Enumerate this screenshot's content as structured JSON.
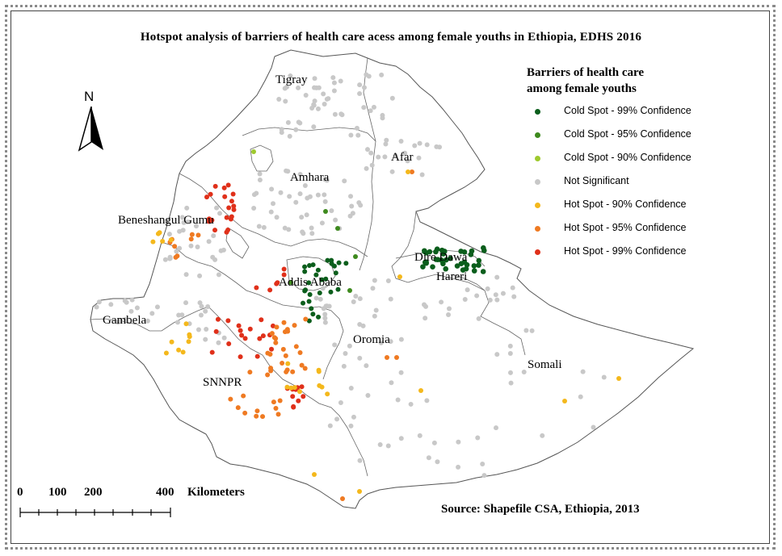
{
  "title": "Hotspot analysis of barriers of health care acess among female youths in Ethiopia, EDHS 2016",
  "legend": {
    "title_line1": "Barriers of health care",
    "title_line2": "among female youths",
    "items": [
      {
        "label": "Cold Spot - 99% Confidence",
        "color": "#0b5e1c"
      },
      {
        "label": "Cold Spot - 95% Confidence",
        "color": "#3e8a1e"
      },
      {
        "label": "Cold Spot - 90% Confidence",
        "color": "#9ec92e"
      },
      {
        "label": "Not Significant",
        "color": "#c8c8c8"
      },
      {
        "label": "Hot Spot - 90% Confidence",
        "color": "#f4b81c"
      },
      {
        "label": "Hot Spot - 95% Confidence",
        "color": "#ef7a22"
      },
      {
        "label": "Hot Spot - 99% Confidence",
        "color": "#e0301a"
      }
    ]
  },
  "regions": {
    "tigray": "Tigray",
    "afar": "Afar",
    "amhara": "Amhara",
    "benishangul": "Beneshangul Gumu",
    "dire_dawa": "Dire Dawa",
    "harari": "Hareri",
    "addis_ababa": "Addis Ababa",
    "gambela": "Gambela",
    "oromia": "Oromia",
    "somali": "Somali",
    "snnpr": "SNNPR"
  },
  "north_label": "N",
  "scale": {
    "ticks": [
      "0",
      "100",
      "200",
      "400"
    ],
    "unit": "Kilometers"
  },
  "source": "Source: Shapefile CSA, Ethiopia, 2013"
}
